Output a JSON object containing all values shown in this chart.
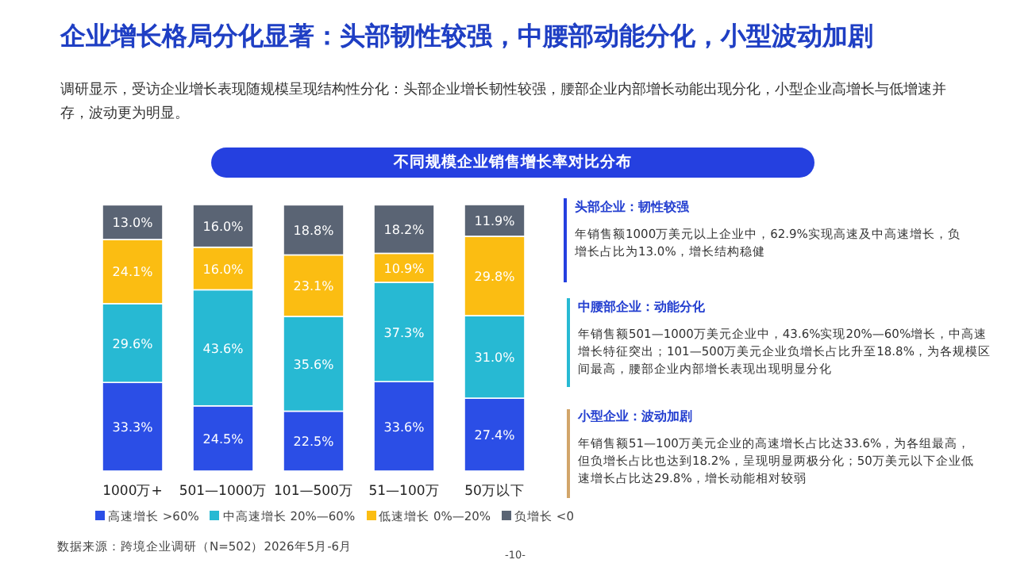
{
  "chart_data": {
    "type": "bar",
    "stacked": true,
    "legend": "bottom",
    "title": "企业增长格局分化显著：头部韧性较强，中腰部动能分化，小型波动加剧",
    "subtitle": "调研显示，受访企业增长表现随规模呈现结构性分化：头部企业增长韧性较强，腰部企业内部增长动能出现分化，小型企业高增长与低增速并存，波动更为明显。",
    "categories": [
      "1000万+",
      "501—1000万",
      "101—500万",
      "51—100万",
      "50万以下"
    ],
    "series": [
      {
        "name": "高速增长 >60%",
        "color": "#2b4ee6",
        "values": [
          33.3,
          24.5,
          22.5,
          33.6,
          27.4
        ],
        "value_labels": [
          "33.3%",
          "24.5%",
          "22.5%",
          "33.6%",
          "27.4%"
        ]
      },
      {
        "name": "中高速增长 20%—60%",
        "color": "#27b9d3",
        "values": [
          29.6,
          43.6,
          35.6,
          37.3,
          31.0
        ],
        "value_labels": [
          "29.6%",
          "43.6%",
          "35.6%",
          "37.3%",
          "31.0%"
        ]
      },
      {
        "name": "低速增长 0%—20%",
        "color": "#fbbd12",
        "values": [
          24.1,
          16.0,
          23.1,
          10.9,
          29.8
        ],
        "value_labels": [
          "24.1%",
          "16.0%",
          "23.1%",
          "10.9%",
          "29.8%"
        ]
      },
      {
        "name": "负增长 <0",
        "color": "#5a6474",
        "values": [
          13.0,
          16.0,
          18.8,
          18.2,
          11.9
        ],
        "value_labels": [
          "13.0%",
          "16.0%",
          "18.8%",
          "18.2%",
          "11.9%"
        ]
      }
    ],
    "annotations": [
      "不同规模企业销售增长率对比分布",
      "头部企业：韧性较强",
      "年销售额1000万美元以上企业中，62.9%实现高速及中高速增长，负增长占比为13.0%，增长结构稳健",
      "中腰部企业：动能分化",
      "年销售额501—1000万美元企业中，43.6%实现20%—60%增长，中高速增长特征突出；101—500万美元企业负增长占比升至18.8%，为各规模区间最高，腰部企业内部增长表现出现明显分化",
      "小型企业：波动加剧",
      "年销售额51—100万美元企业的高速增长占比达33.6%，为各组最高，但负增长占比也达到18.2%，呈现明显两极分化；50万美元以下企业低速增长占比达29.8%，增长动能相对较弱",
      "数据来源：跨境企业调研（N=502）2026年5月-6月",
      "-10-"
    ]
  }
}
